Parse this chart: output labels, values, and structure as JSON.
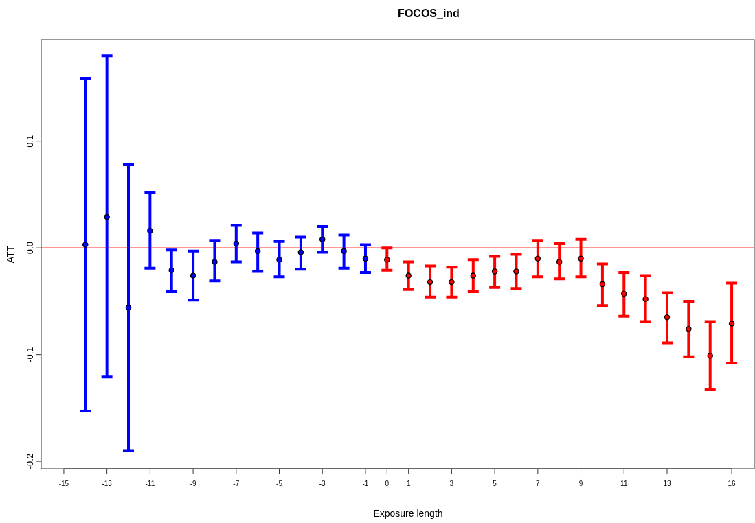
{
  "chart_data": {
    "type": "scatter",
    "title": "FOCOS_ind",
    "xlabel": "Exposure length",
    "ylabel": "ATT",
    "xlim": [
      -16.05,
      17.05
    ],
    "ylim": [
      -0.207,
      0.195
    ],
    "xticks": [
      -15,
      -13,
      -11,
      -9,
      -7,
      -5,
      -3,
      -1,
      0,
      1,
      3,
      5,
      7,
      9,
      11,
      13,
      16
    ],
    "yticks": [
      {
        "value": -0.2,
        "label": "-0.2"
      },
      {
        "value": -0.1,
        "label": "-0.1"
      },
      {
        "value": 0,
        "label": "0.0"
      },
      {
        "value": 0.1,
        "label": "0.1"
      }
    ],
    "grid": false,
    "marker": "circle",
    "ref_lines": [
      {
        "axis": "y",
        "value": 0,
        "color": "#ff3030"
      }
    ],
    "series": [
      {
        "color": "#0000ff",
        "x": [
          -14,
          -13,
          -12,
          -11,
          -10,
          -9,
          -8,
          -7,
          -6,
          -5,
          -4,
          -3,
          -2,
          -1
        ],
        "values": [
          0.003,
          0.029,
          -0.056,
          0.016,
          -0.021,
          -0.026,
          -0.013,
          0.004,
          -0.003,
          -0.011,
          -0.004,
          0.008,
          -0.003,
          -0.01
        ],
        "errors": [
          [
            -0.153,
            0.159
          ],
          [
            -0.121,
            0.18
          ],
          [
            -0.19,
            0.078
          ],
          [
            -0.019,
            0.052
          ],
          [
            -0.041,
            -0.002
          ],
          [
            -0.049,
            -0.003
          ],
          [
            -0.031,
            0.007
          ],
          [
            -0.013,
            0.021
          ],
          [
            -0.022,
            0.014
          ],
          [
            -0.027,
            0.006
          ],
          [
            -0.02,
            0.01
          ],
          [
            -0.004,
            0.02
          ],
          [
            -0.019,
            0.012
          ],
          [
            -0.023,
            0.003
          ]
        ]
      },
      {
        "color": "#ff0000",
        "x": [
          0,
          1,
          2,
          3,
          4,
          5,
          6,
          7,
          8,
          9,
          10,
          11,
          12,
          13,
          14,
          15,
          16
        ],
        "values": [
          -0.011,
          -0.026,
          -0.032,
          -0.032,
          -0.026,
          -0.022,
          -0.022,
          -0.01,
          -0.013,
          -0.01,
          -0.034,
          -0.043,
          -0.048,
          -0.065,
          -0.076,
          -0.101,
          -0.071
        ],
        "errors": [
          [
            -0.021,
            0.0
          ],
          [
            -0.039,
            -0.013
          ],
          [
            -0.046,
            -0.017
          ],
          [
            -0.046,
            -0.018
          ],
          [
            -0.041,
            -0.011
          ],
          [
            -0.037,
            -0.008
          ],
          [
            -0.038,
            -0.006
          ],
          [
            -0.027,
            0.007
          ],
          [
            -0.029,
            0.004
          ],
          [
            -0.027,
            0.008
          ],
          [
            -0.054,
            -0.015
          ],
          [
            -0.064,
            -0.023
          ],
          [
            -0.069,
            -0.026
          ],
          [
            -0.089,
            -0.042
          ],
          [
            -0.102,
            -0.05
          ],
          [
            -0.133,
            -0.069
          ],
          [
            -0.108,
            -0.033
          ]
        ]
      }
    ]
  }
}
